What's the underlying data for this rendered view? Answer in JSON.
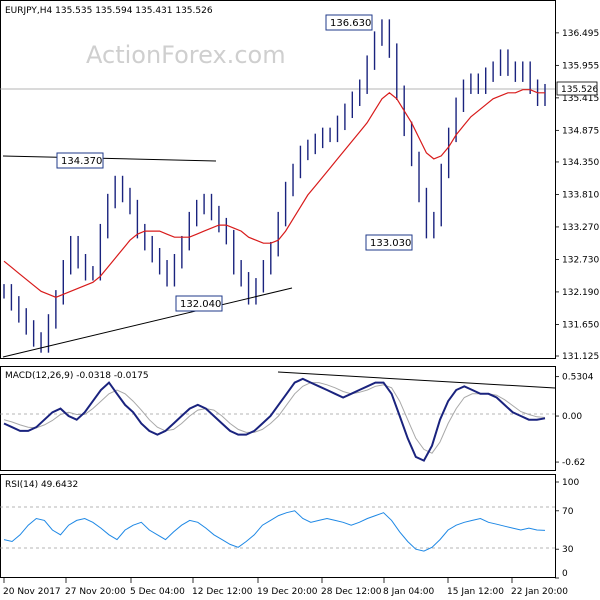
{
  "colors": {
    "price_bars": "#1a237e",
    "moving_average": "#d81b1b",
    "macd_line": "#1a237e",
    "signal_line": "#a8a8a8",
    "rsi_line": "#1e88e5",
    "trendline": "#000000",
    "grid_dashed": "#9e9e9e",
    "axis": "#000000"
  },
  "watermark": "ActionForex.com",
  "chart_data": [
    {
      "type": "line",
      "panel": "price",
      "header": "EURJPY,H4  135.535 135.594 135.431 135.526",
      "title": "",
      "xlabel": "",
      "ylabel": "",
      "ylim": [
        131.125,
        136.975
      ],
      "y_ticks": [
        "136.495",
        "135.955",
        "135.415",
        "134.875",
        "134.350",
        "133.810",
        "133.270",
        "132.730",
        "132.190",
        "131.650",
        "131.125"
      ],
      "current_price": "135.526",
      "annotations": [
        "136.630",
        "134.370",
        "133.030",
        "132.040"
      ],
      "x_ticks": [
        "20 Nov 2017",
        "27 Nov 20:00",
        "5 Dec 04:00",
        "12 Dec 12:00",
        "19 Dec 20:00",
        "28 Dec 12:00",
        "8 Jan 04:00",
        "15 Jan 12:00",
        "22 Jan 20:00"
      ],
      "series": [
        {
          "values": [
            132.2,
            132.0,
            131.8,
            131.6,
            131.4,
            131.3,
            131.7,
            132.1,
            132.6,
            133.0,
            132.7,
            132.5,
            132.5,
            133.2,
            133.7,
            134.0,
            133.8,
            133.6,
            133.2,
            133.0,
            132.8,
            132.6,
            132.4,
            132.7,
            133.0,
            133.4,
            133.6,
            133.7,
            133.5,
            133.3,
            133.1,
            132.6,
            132.4,
            132.1,
            132.3,
            132.6,
            132.9,
            133.4,
            133.9,
            134.2,
            134.5,
            134.6,
            134.7,
            134.8,
            134.8,
            135.0,
            135.2,
            135.4,
            135.6,
            136.0,
            136.4,
            136.6,
            136.2,
            135.5,
            134.9,
            134.4,
            133.8,
            133.2,
            133.4,
            134.2,
            134.8,
            135.3,
            135.6,
            135.7,
            135.6,
            135.8,
            135.9,
            136.1,
            135.9,
            135.8,
            135.9,
            135.6,
            135.4,
            135.526
          ],
          "moving_average": [
            132.7,
            132.6,
            132.5,
            132.4,
            132.3,
            132.2,
            132.15,
            132.1,
            132.15,
            132.2,
            132.25,
            132.3,
            132.35,
            132.45,
            132.6,
            132.75,
            132.9,
            133.05,
            133.15,
            133.2,
            133.2,
            133.2,
            133.15,
            133.1,
            133.1,
            133.1,
            133.15,
            133.2,
            133.25,
            133.3,
            133.3,
            133.25,
            133.2,
            133.1,
            133.05,
            133.0,
            133.0,
            133.05,
            133.2,
            133.4,
            133.6,
            133.8,
            133.95,
            134.1,
            134.25,
            134.4,
            134.55,
            134.7,
            134.85,
            135.0,
            135.2,
            135.4,
            135.5,
            135.4,
            135.2,
            135.0,
            134.75,
            134.5,
            134.4,
            134.45,
            134.6,
            134.8,
            134.95,
            135.1,
            135.2,
            135.3,
            135.4,
            135.45,
            135.5,
            135.5,
            135.55,
            135.55,
            135.5,
            135.5
          ]
        }
      ]
    },
    {
      "type": "line",
      "panel": "macd",
      "header": "MACD(12,26,9) -0.0318 -0.0175",
      "title": "",
      "ylim": [
        -0.7,
        0.62
      ],
      "y_ticks": [
        "0.5304",
        "0.00",
        "-0.62"
      ],
      "series": [
        {
          "values": [
            -0.1,
            -0.15,
            -0.2,
            -0.2,
            -0.15,
            -0.05,
            0.05,
            0.1,
            0.0,
            -0.05,
            0.05,
            0.2,
            0.35,
            0.45,
            0.3,
            0.15,
            0.05,
            -0.1,
            -0.2,
            -0.25,
            -0.2,
            -0.1,
            0.0,
            0.1,
            0.15,
            0.1,
            0.0,
            -0.1,
            -0.2,
            -0.25,
            -0.25,
            -0.2,
            -0.1,
            0.0,
            0.15,
            0.3,
            0.45,
            0.5,
            0.45,
            0.4,
            0.35,
            0.3,
            0.25,
            0.3,
            0.35,
            0.4,
            0.45,
            0.45,
            0.3,
            0.0,
            -0.3,
            -0.55,
            -0.6,
            -0.4,
            -0.05,
            0.2,
            0.35,
            0.4,
            0.35,
            0.3,
            0.3,
            0.25,
            0.15,
            0.05,
            0.0,
            -0.05,
            -0.05,
            -0.03
          ]
        },
        {
          "values": [
            -0.05,
            -0.08,
            -0.12,
            -0.15,
            -0.16,
            -0.12,
            -0.06,
            0.02,
            0.05,
            0.02,
            0.02,
            0.1,
            0.2,
            0.3,
            0.35,
            0.3,
            0.2,
            0.08,
            -0.05,
            -0.15,
            -0.2,
            -0.18,
            -0.1,
            0.0,
            0.08,
            0.1,
            0.08,
            0.0,
            -0.1,
            -0.18,
            -0.22,
            -0.22,
            -0.18,
            -0.1,
            0.0,
            0.15,
            0.3,
            0.4,
            0.45,
            0.45,
            0.42,
            0.38,
            0.33,
            0.3,
            0.32,
            0.35,
            0.4,
            0.42,
            0.38,
            0.2,
            -0.05,
            -0.3,
            -0.45,
            -0.5,
            -0.35,
            -0.1,
            0.1,
            0.25,
            0.3,
            0.3,
            0.3,
            0.28,
            0.22,
            0.14,
            0.06,
            0.02,
            -0.01,
            -0.02
          ]
        }
      ],
      "trendline_label": ""
    },
    {
      "type": "line",
      "panel": "rsi",
      "header": "RSI(14) 49.6432",
      "title": "",
      "ylim": [
        0,
        100
      ],
      "y_ticks": [
        "100",
        "70",
        "30",
        "0"
      ],
      "levels": [
        70,
        30
      ],
      "series": [
        {
          "values": [
            40,
            38,
            45,
            55,
            62,
            60,
            50,
            45,
            55,
            60,
            62,
            58,
            52,
            45,
            40,
            50,
            55,
            58,
            50,
            45,
            40,
            48,
            55,
            60,
            58,
            52,
            45,
            40,
            35,
            32,
            38,
            45,
            55,
            60,
            65,
            68,
            70,
            62,
            58,
            60,
            62,
            60,
            58,
            55,
            58,
            62,
            65,
            68,
            60,
            48,
            38,
            30,
            28,
            32,
            40,
            50,
            55,
            58,
            60,
            62,
            58,
            56,
            54,
            52,
            50,
            52,
            50,
            49.6
          ]
        }
      ]
    }
  ]
}
